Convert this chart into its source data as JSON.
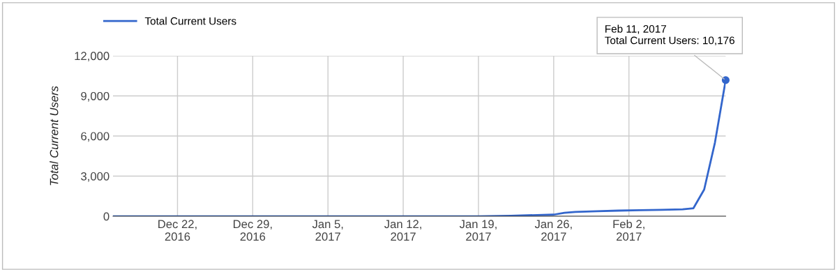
{
  "chart_data": {
    "type": "line",
    "ylabel": "Total Current Users",
    "x": [
      "2016-12-16",
      "2017-01-19",
      "2017-01-22",
      "2017-01-26",
      "2017-01-27",
      "2017-01-28",
      "2017-01-30",
      "2017-02-01",
      "2017-02-03",
      "2017-02-05",
      "2017-02-07",
      "2017-02-08",
      "2017-02-09",
      "2017-02-10",
      "2017-02-11"
    ],
    "series": [
      {
        "name": "Total Current Users",
        "color": "#3366cc",
        "values": [
          0,
          0,
          40,
          120,
          260,
          320,
          380,
          420,
          450,
          480,
          520,
          600,
          2000,
          5500,
          10176
        ]
      }
    ],
    "xlim": [
      "2016-12-16",
      "2017-02-11"
    ],
    "xticks": [
      {
        "value": "2016-12-22",
        "label": "Dec 22,\n2016"
      },
      {
        "value": "2016-12-29",
        "label": "Dec 29,\n2016"
      },
      {
        "value": "2017-01-05",
        "label": "Jan 5,\n2017"
      },
      {
        "value": "2017-01-12",
        "label": "Jan 12,\n2017"
      },
      {
        "value": "2017-01-19",
        "label": "Jan 19,\n2017"
      },
      {
        "value": "2017-01-26",
        "label": "Jan 26,\n2017"
      },
      {
        "value": "2017-02-02",
        "label": "Feb 2,\n2017"
      }
    ],
    "ylim": [
      0,
      12000
    ],
    "yticks": [
      {
        "value": 0,
        "label": "0"
      },
      {
        "value": 3000,
        "label": "3,000"
      },
      {
        "value": 6000,
        "label": "6,000"
      },
      {
        "value": 9000,
        "label": "9,000"
      },
      {
        "value": 12000,
        "label": "12,000"
      }
    ],
    "grid": true,
    "legend": "top left",
    "marker": "none",
    "line_style": "solid",
    "annotations": [
      {
        "text": "Feb 11, 2017\nTotal Current Users: 10,176",
        "x": "2017-02-11",
        "y": 10176
      }
    ]
  }
}
